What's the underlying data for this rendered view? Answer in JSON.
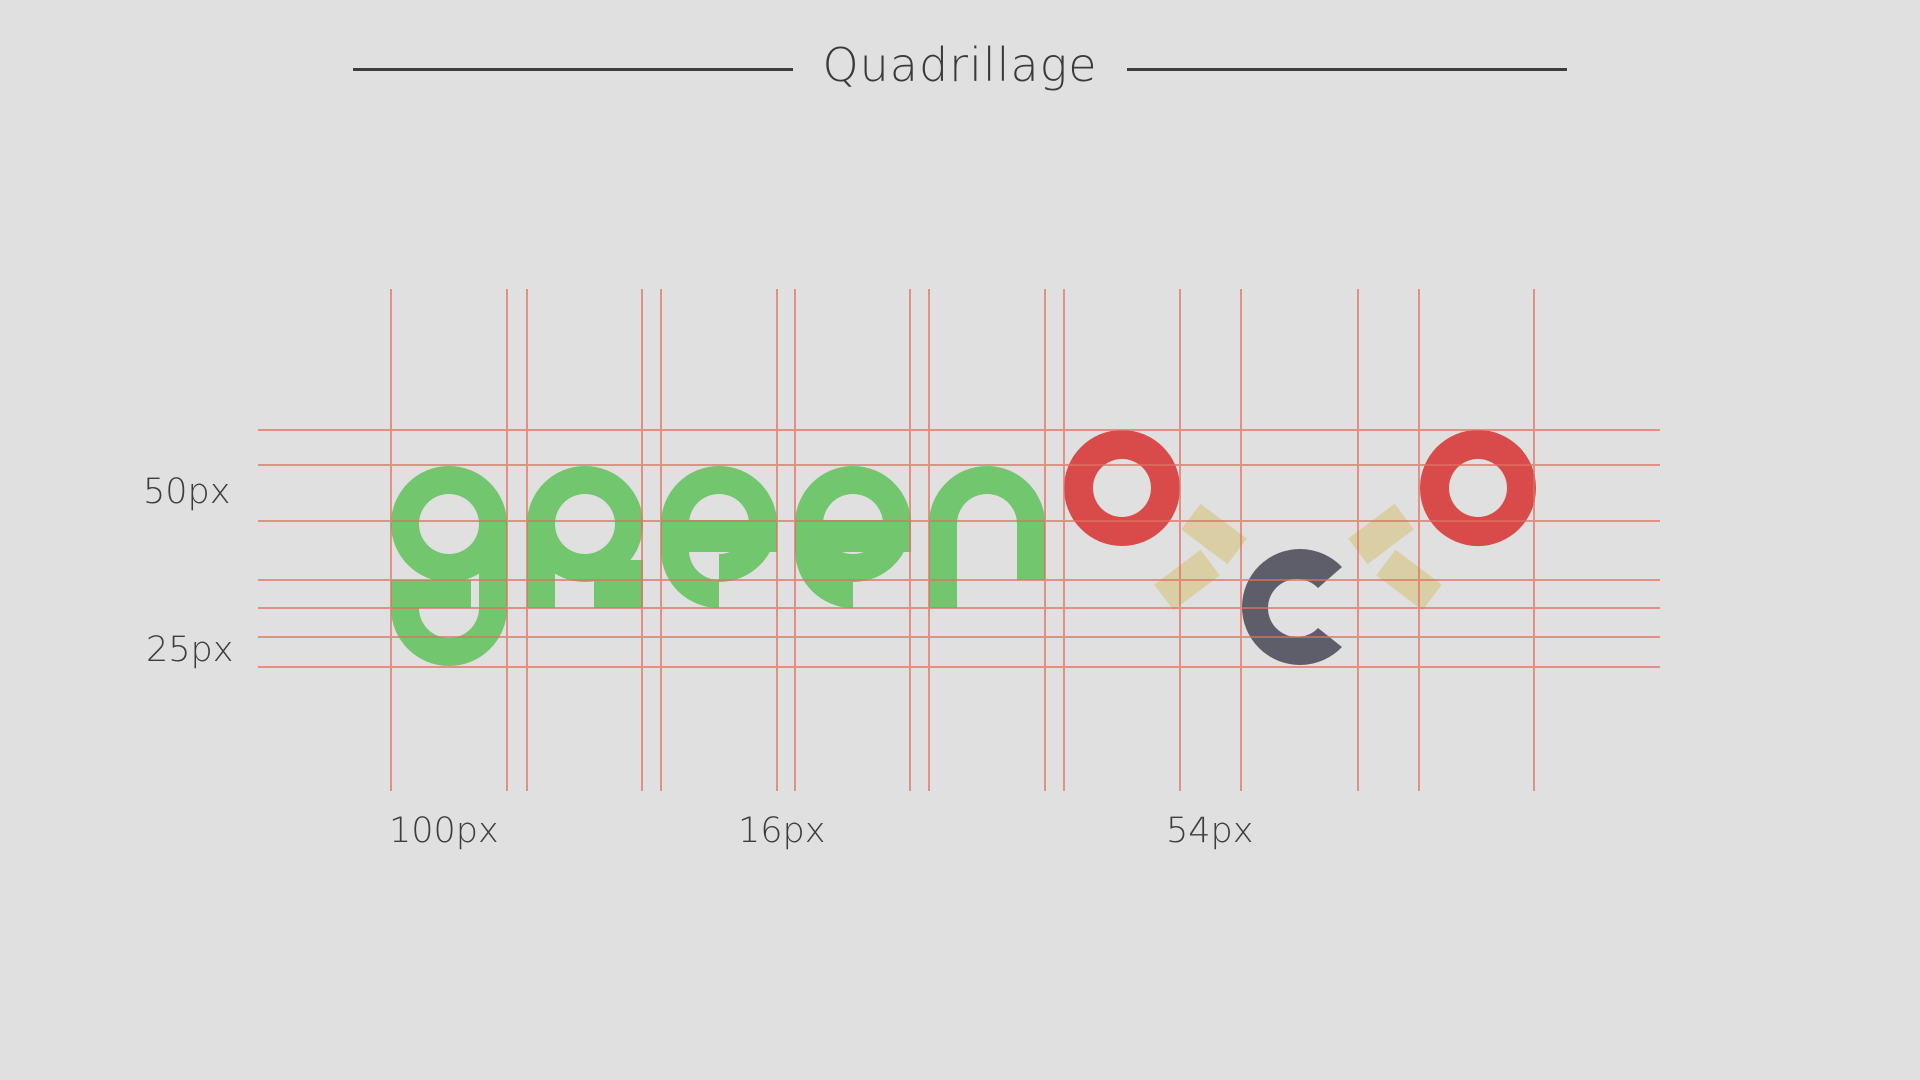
{
  "title": "Quadrillage",
  "measures": {
    "row_upper": "50px",
    "row_lower": "25px",
    "col_first": "100px",
    "col_middle": "16px",
    "col_right": "54px"
  },
  "logo": {
    "wordmark_color": "#72c66d",
    "ring_color": "#d94b4b",
    "letter_c_color": "#5e5e6a",
    "accent_color": "#d9c890",
    "grid_color": "#e07060"
  }
}
